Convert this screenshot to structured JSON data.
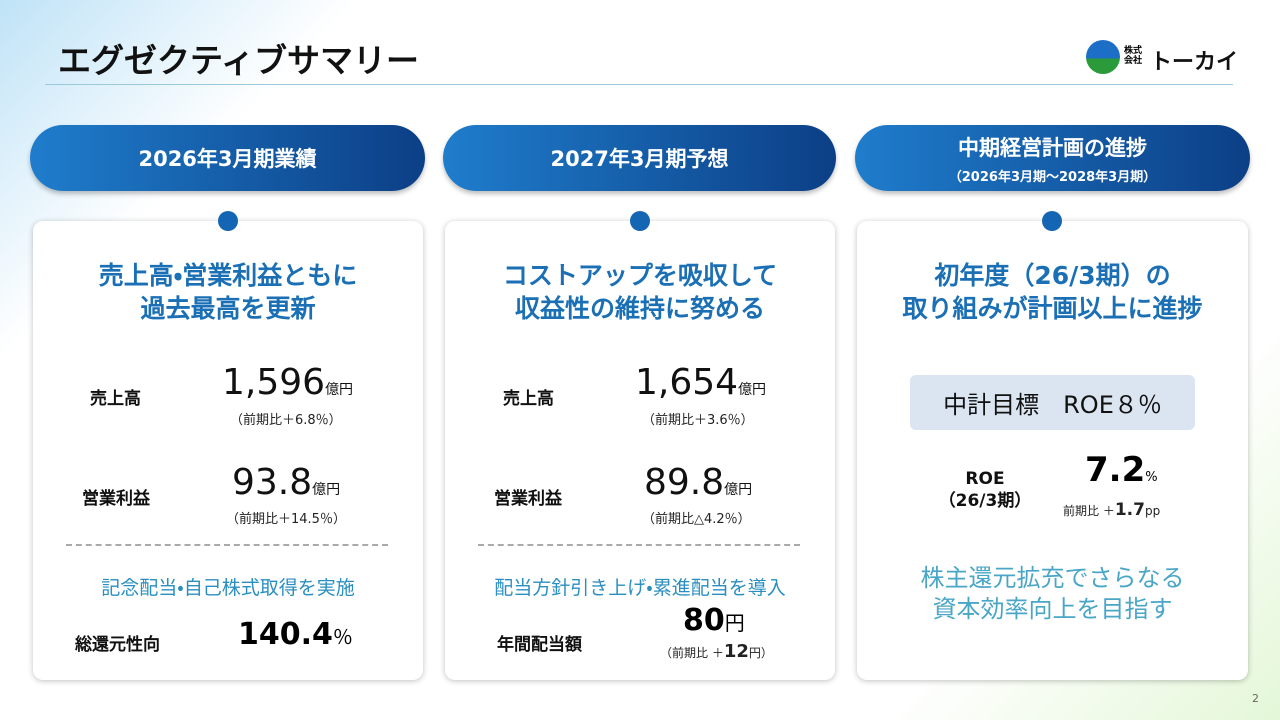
{
  "header": {
    "title": "エグゼクティブサマリー",
    "logo_small_top": "株式",
    "logo_small_bottom": "会社",
    "logo": "トーカイ"
  },
  "columns": [
    {
      "heading": "2026年3月期業績",
      "headline": [
        "売上高・営業利益ともに",
        "過去最高を更新"
      ],
      "metrics": [
        {
          "label": "売上高",
          "value": "1,596",
          "unit": "億円",
          "note": "（前期比＋6.8％）"
        },
        {
          "label": "営業利益",
          "value": "93.8",
          "unit": "億円",
          "note": "（前期比＋14.5％）"
        }
      ],
      "sub_headline": "記念配当・自己株式取得を実施",
      "extra": {
        "label": "総還元性向",
        "value": "140.4",
        "unit": "％"
      }
    },
    {
      "heading": "2027年3月期予想",
      "headline": [
        "コストアップを吸収して",
        "収益性の維持に努める"
      ],
      "metrics": [
        {
          "label": "売上高",
          "value": "1,654",
          "unit": "億円",
          "note": "（前期比＋3.6％）"
        },
        {
          "label": "営業利益",
          "value": "89.8",
          "unit": "億円",
          "note": "（前期比△4.2％）"
        }
      ],
      "sub_headline": "配当方針引き上げ・累進配当を導入",
      "extra": {
        "label": "年間配当額",
        "value": "80",
        "unit": "円",
        "note_prefix": "（前期比 ＋",
        "note_value": "12",
        "note_suffix": "円）"
      }
    },
    {
      "heading": "中期経営計画の進捗",
      "subheading": "（2026年3月期～2028年3月期）",
      "headline": [
        "初年度（26/3期）の",
        "取り組みが計画以上に進捗"
      ],
      "target": "中計目標　ROE８％",
      "roe": {
        "label": [
          "ROE",
          "（26/3期）"
        ],
        "value": "7.2",
        "unit": "%",
        "note_prefix": "前期比 ＋",
        "note_value": "1.7",
        "note_unit": "pp"
      },
      "closing": [
        "株主還元拡充でさらなる",
        "資本効率向上を目指す"
      ]
    }
  ],
  "page_number": "2"
}
